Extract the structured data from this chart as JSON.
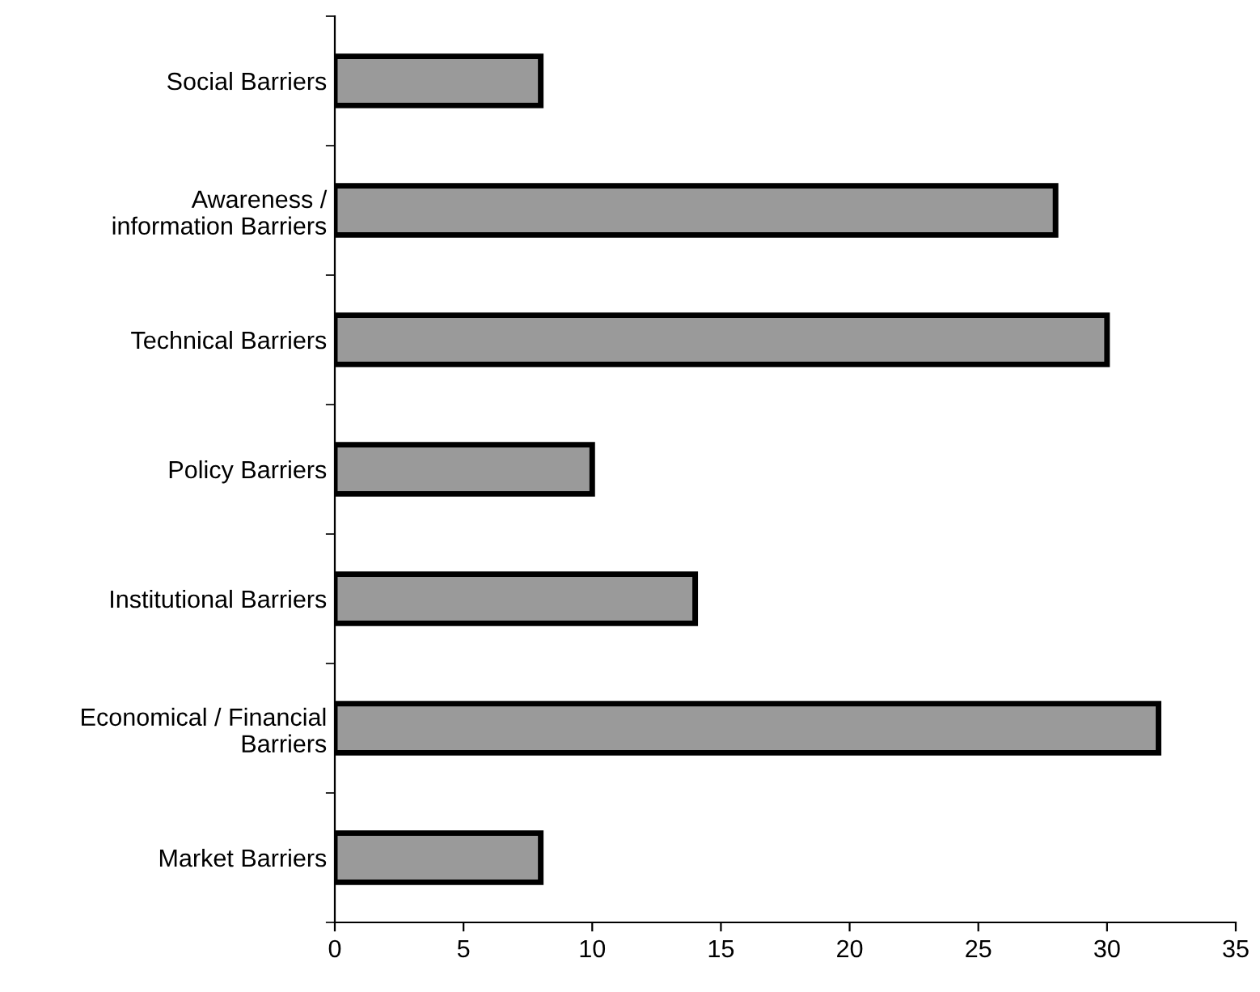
{
  "chart_data": {
    "type": "bar",
    "orientation": "horizontal",
    "categories": [
      "Social Barriers",
      "Awareness /\ninformation Barriers",
      "Technical Barriers",
      "Policy Barriers",
      "Institutional Barriers",
      "Economical / Financial\nBarriers",
      "Market Barriers"
    ],
    "values": [
      8,
      28,
      30,
      10,
      14,
      32,
      8
    ],
    "color": "#9a9a9a",
    "xlim": [
      0,
      35
    ],
    "xticks": [
      0,
      5,
      10,
      15,
      20,
      25,
      30,
      35
    ],
    "grid": false
  }
}
